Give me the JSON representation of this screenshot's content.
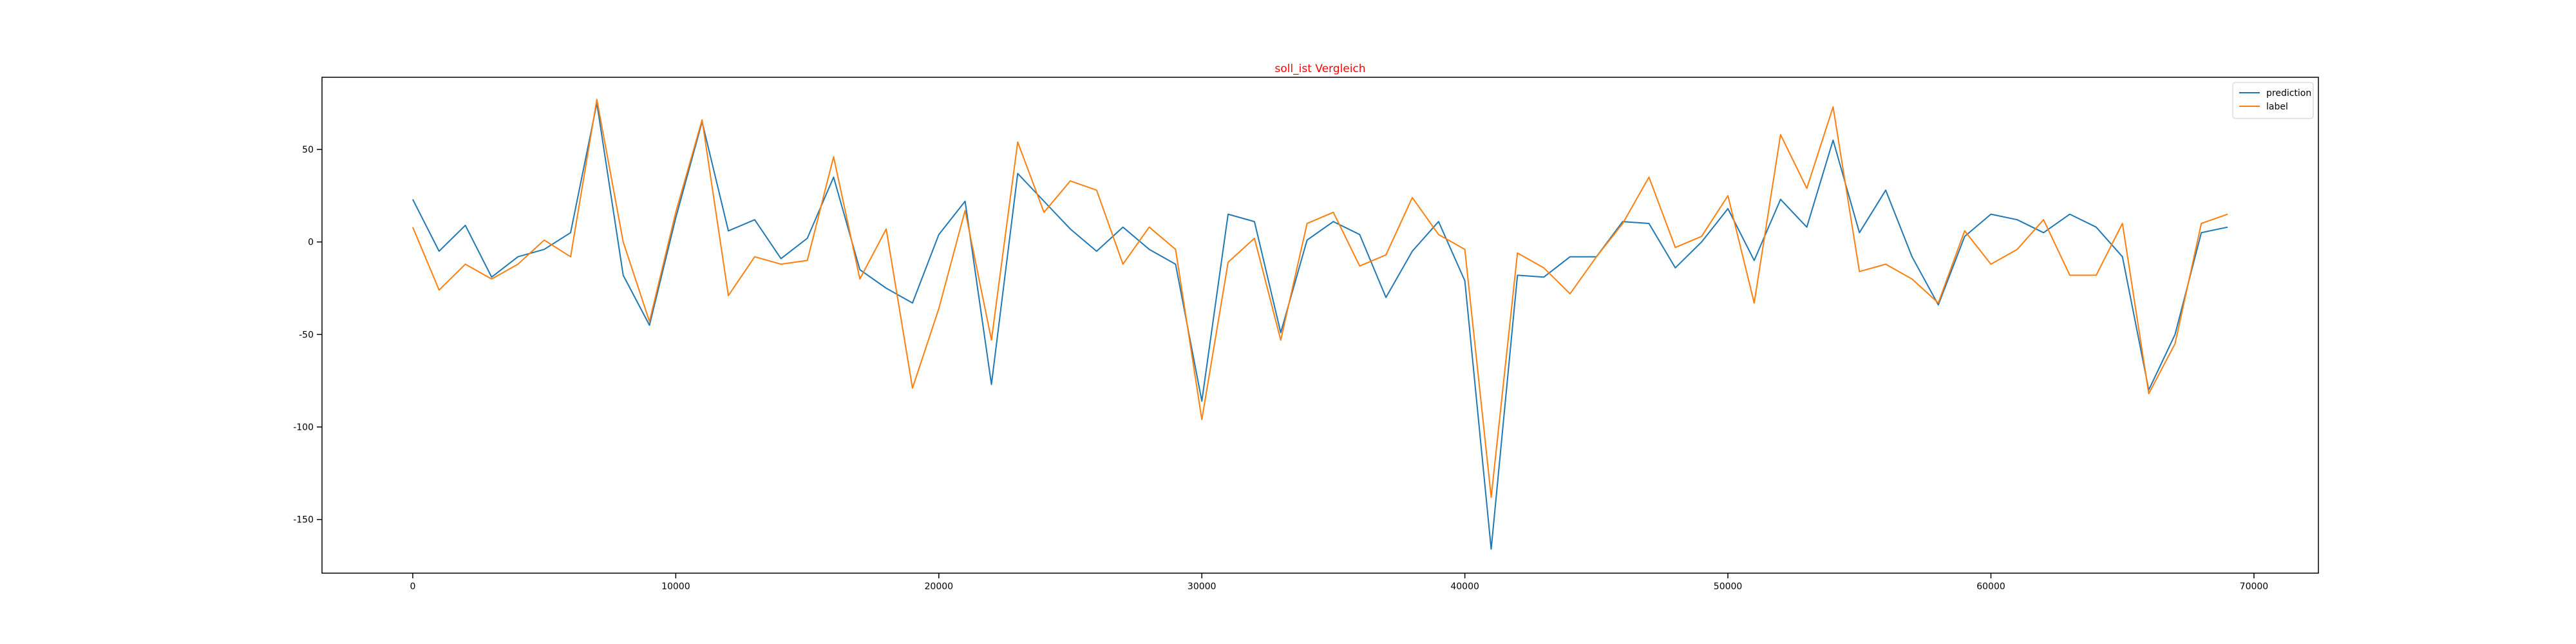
{
  "chart_data": {
    "type": "line",
    "title": "soll_ist Vergleich",
    "title_color": "#ff0000",
    "xlabel": "",
    "ylabel": "",
    "xlim": [
      -3450,
      72450
    ],
    "ylim": [
      -179,
      89
    ],
    "x_ticks": [
      0,
      10000,
      20000,
      30000,
      40000,
      50000,
      60000,
      70000
    ],
    "y_ticks": [
      -150,
      -100,
      -50,
      0,
      50
    ],
    "grid": false,
    "legend_position": "top-right",
    "x": [
      0,
      1000,
      2000,
      3000,
      4000,
      5000,
      6000,
      7000,
      8000,
      9000,
      10000,
      11000,
      12000,
      13000,
      14000,
      15000,
      16000,
      17000,
      18000,
      19000,
      20000,
      21000,
      22000,
      23000,
      24000,
      25000,
      26000,
      27000,
      28000,
      29000,
      30000,
      31000,
      32000,
      33000,
      34000,
      35000,
      36000,
      37000,
      38000,
      39000,
      40000,
      41000,
      42000,
      43000,
      44000,
      45000,
      46000,
      47000,
      48000,
      49000,
      50000,
      51000,
      52000,
      53000,
      54000,
      55000,
      56000,
      57000,
      58000,
      59000,
      60000,
      61000,
      62000,
      63000,
      64000,
      65000,
      66000,
      67000,
      68000,
      69000
    ],
    "series": [
      {
        "name": "prediction",
        "color": "#1f77b4",
        "values": [
          23,
          -5,
          9,
          -19,
          -8,
          -4,
          5,
          75,
          -18,
          -45,
          13,
          65,
          6,
          12,
          -9,
          2,
          35,
          -15,
          -25,
          -33,
          4,
          22,
          -77,
          37,
          22,
          7,
          -5,
          8,
          -4,
          -12,
          -86,
          15,
          11,
          -49,
          1,
          11,
          4,
          -30,
          -5,
          11,
          -21,
          -166,
          -18,
          -19,
          -8,
          -8,
          11,
          10,
          -14,
          0,
          18,
          -10,
          23,
          8,
          55,
          5,
          28,
          -8,
          -34,
          3,
          15,
          12,
          5,
          15,
          8,
          -8,
          -80,
          -50,
          5,
          8
        ]
      },
      {
        "name": "label",
        "color": "#ff7f0e",
        "values": [
          8,
          -26,
          -12,
          -20,
          -12,
          1,
          -8,
          77,
          0,
          -43,
          16,
          66,
          -29,
          -8,
          -12,
          -10,
          46,
          -20,
          7,
          -79,
          -36,
          17,
          -53,
          54,
          16,
          33,
          28,
          -12,
          8,
          -4,
          -96,
          -11,
          2,
          -53,
          10,
          16,
          -13,
          -7,
          24,
          4,
          -4,
          -138,
          -6,
          -14,
          -28,
          -8,
          10,
          35,
          -3,
          3,
          25,
          -33,
          58,
          29,
          73,
          -16,
          -12,
          -20,
          -33,
          6,
          -12,
          -4,
          12,
          -18,
          -18,
          10,
          -82,
          -55,
          10,
          15
        ]
      }
    ]
  }
}
